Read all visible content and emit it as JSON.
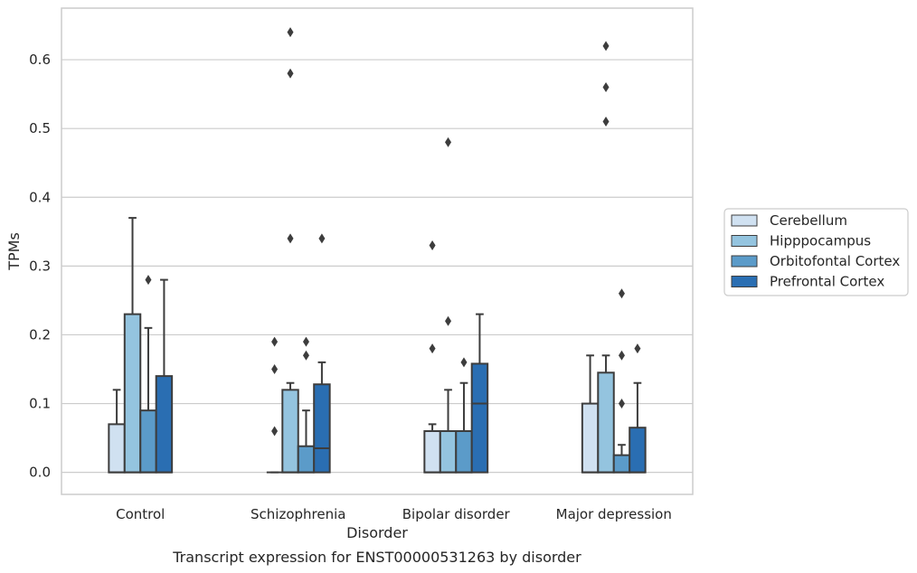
{
  "chart_data": {
    "type": "box",
    "xlabel": "Disorder",
    "ylabel": "TPMs",
    "caption": "Transcript expression for ENST00000531263 by disorder",
    "ylim": [
      -0.032,
      0.675
    ],
    "yticks": [
      "0.0",
      "0.1",
      "0.2",
      "0.3",
      "0.4",
      "0.5",
      "0.6"
    ],
    "grid": true,
    "legend_position": "right",
    "categories": [
      "Control",
      "Schizophrenia",
      "Bipolar disorder",
      "Major depression"
    ],
    "series": [
      {
        "name": "Cerebellum",
        "color": "#d0e1f1",
        "boxes": [
          {
            "q1": 0.0,
            "median": 0.0,
            "q3": 0.07,
            "whisker_low": 0.0,
            "whisker_high": 0.12,
            "outliers": []
          },
          {
            "q1": 0.0,
            "median": 0.0,
            "q3": 0.0,
            "whisker_low": 0.0,
            "whisker_high": 0.0,
            "outliers": [
              0.06,
              0.15,
              0.19
            ]
          },
          {
            "q1": 0.0,
            "median": 0.0,
            "q3": 0.06,
            "whisker_low": 0.0,
            "whisker_high": 0.07,
            "outliers": [
              0.18,
              0.33
            ]
          },
          {
            "q1": 0.0,
            "median": 0.0,
            "q3": 0.1,
            "whisker_low": 0.0,
            "whisker_high": 0.17,
            "outliers": []
          }
        ]
      },
      {
        "name": "Hipppocampus",
        "color": "#94c4df",
        "boxes": [
          {
            "q1": 0.0,
            "median": 0.0,
            "q3": 0.23,
            "whisker_low": 0.0,
            "whisker_high": 0.37,
            "outliers": []
          },
          {
            "q1": 0.0,
            "median": 0.0,
            "q3": 0.12,
            "whisker_low": 0.0,
            "whisker_high": 0.13,
            "outliers": [
              0.34,
              0.58,
              0.64
            ]
          },
          {
            "q1": 0.0,
            "median": 0.0,
            "q3": 0.06,
            "whisker_low": 0.0,
            "whisker_high": 0.12,
            "outliers": [
              0.22,
              0.48
            ]
          },
          {
            "q1": 0.0,
            "median": 0.0,
            "q3": 0.145,
            "whisker_low": 0.0,
            "whisker_high": 0.17,
            "outliers": [
              0.51,
              0.56,
              0.62
            ]
          }
        ]
      },
      {
        "name": "Orbitofontal Cortex",
        "color": "#5b9bc9",
        "boxes": [
          {
            "q1": 0.0,
            "median": 0.0,
            "q3": 0.09,
            "whisker_low": 0.0,
            "whisker_high": 0.21,
            "outliers": [
              0.28
            ]
          },
          {
            "q1": 0.0,
            "median": 0.0,
            "q3": 0.038,
            "whisker_low": 0.0,
            "whisker_high": 0.09,
            "outliers": [
              0.17,
              0.19
            ]
          },
          {
            "q1": 0.0,
            "median": 0.0,
            "q3": 0.06,
            "whisker_low": 0.0,
            "whisker_high": 0.13,
            "outliers": [
              0.16
            ]
          },
          {
            "q1": 0.0,
            "median": 0.0,
            "q3": 0.025,
            "whisker_low": 0.0,
            "whisker_high": 0.04,
            "outliers": [
              0.1,
              0.17,
              0.26
            ]
          }
        ]
      },
      {
        "name": "Prefrontal Cortex",
        "color": "#2a6eb2",
        "boxes": [
          {
            "q1": 0.0,
            "median": 0.0,
            "q3": 0.14,
            "whisker_low": 0.0,
            "whisker_high": 0.28,
            "outliers": []
          },
          {
            "q1": 0.0,
            "median": 0.035,
            "q3": 0.128,
            "whisker_low": 0.0,
            "whisker_high": 0.16,
            "outliers": [
              0.34
            ]
          },
          {
            "q1": 0.0,
            "median": 0.1,
            "q3": 0.158,
            "whisker_low": 0.0,
            "whisker_high": 0.23,
            "outliers": []
          },
          {
            "q1": 0.0,
            "median": 0.0,
            "q3": 0.065,
            "whisker_low": 0.0,
            "whisker_high": 0.13,
            "outliers": [
              0.18
            ]
          }
        ]
      }
    ]
  }
}
